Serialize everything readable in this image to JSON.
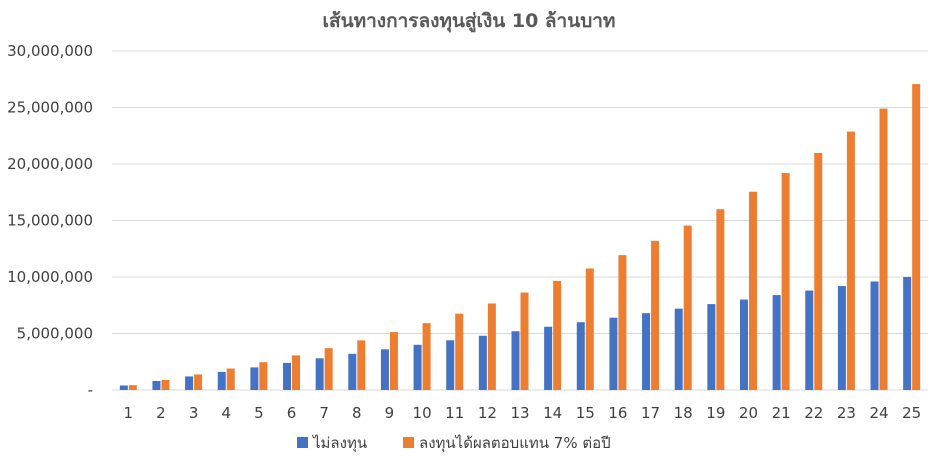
{
  "chart_data": {
    "type": "bar",
    "title": "เส้นทางการลงทุนสู่เงิน 10 ล้านบาท",
    "xlabel": "",
    "ylabel": "",
    "categories": [
      "1",
      "2",
      "3",
      "4",
      "5",
      "6",
      "7",
      "8",
      "9",
      "10",
      "11",
      "12",
      "13",
      "14",
      "15",
      "16",
      "17",
      "18",
      "19",
      "20",
      "21",
      "22",
      "23",
      "24",
      "25"
    ],
    "ylim": [
      0,
      30000000
    ],
    "yticks": [
      "-",
      "5,000,000",
      "10,000,000",
      "15,000,000",
      "20,000,000",
      "25,000,000",
      "30,000,000"
    ],
    "grid": true,
    "legend_position": "bottom",
    "series": [
      {
        "name": "ไม่ลงทุน",
        "color": "#4472c4",
        "values": [
          400000,
          800000,
          1200000,
          1600000,
          2000000,
          2400000,
          2800000,
          3200000,
          3600000,
          4000000,
          4400000,
          4800000,
          5200000,
          5600000,
          6000000,
          6400000,
          6800000,
          7200000,
          7600000,
          8000000,
          8400000,
          8800000,
          9200000,
          9600000,
          10000000
        ]
      },
      {
        "name": "ลงทุนได้ผลตอบแทน 7% ต่อปี",
        "color": "#ed7d31",
        "values": [
          428000,
          885960,
          1375977,
          1900296,
          2461317,
          3061609,
          3703921,
          4391196,
          5126580,
          5913441,
          6755382,
          7656259,
          8620197,
          9651611,
          10755224,
          11936090,
          13199616,
          14551589,
          15998200,
          17546074,
          19202299,
          20974459,
          22870671,
          24899618,
          27070591
        ]
      }
    ]
  }
}
